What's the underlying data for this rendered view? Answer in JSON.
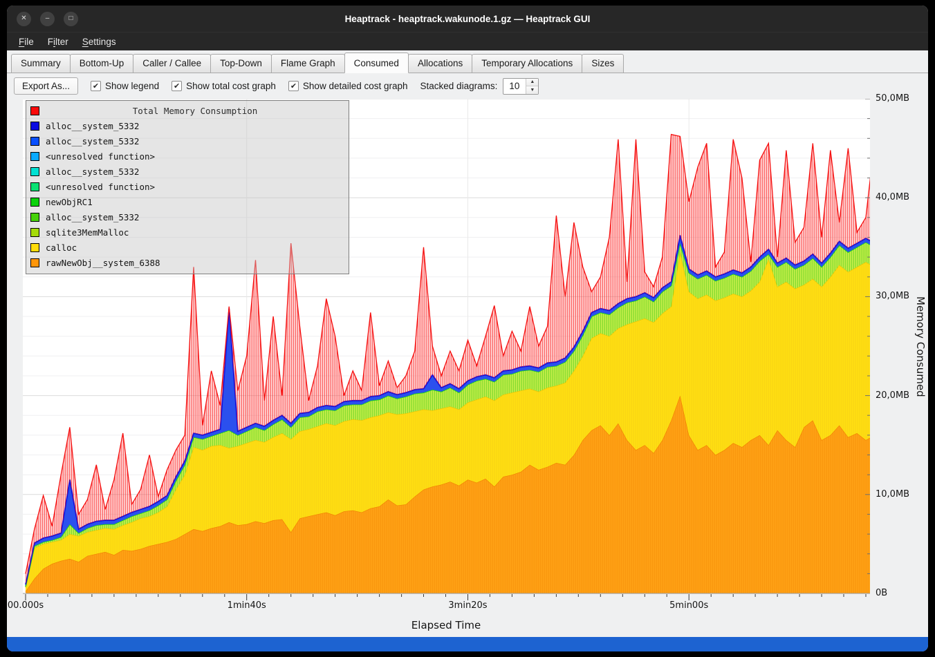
{
  "window": {
    "title": "Heaptrack - heaptrack.wakunode.1.gz — Heaptrack GUI",
    "controls": [
      {
        "name": "close",
        "glyph": "✕"
      },
      {
        "name": "minimize",
        "glyph": "–"
      },
      {
        "name": "maximize",
        "glyph": "□"
      }
    ]
  },
  "menubar": {
    "items": [
      {
        "label": "File",
        "accel": 0
      },
      {
        "label": "Filter",
        "accel": 1
      },
      {
        "label": "Settings",
        "accel": 0
      }
    ]
  },
  "tabs": [
    {
      "label": "Summary",
      "active": false
    },
    {
      "label": "Bottom-Up",
      "active": false
    },
    {
      "label": "Caller / Callee",
      "active": false
    },
    {
      "label": "Top-Down",
      "active": false
    },
    {
      "label": "Flame Graph",
      "active": false
    },
    {
      "label": "Consumed",
      "active": true
    },
    {
      "label": "Allocations",
      "active": false
    },
    {
      "label": "Temporary Allocations",
      "active": false
    },
    {
      "label": "Sizes",
      "active": false
    }
  ],
  "toolbar": {
    "export_button": "Export As...",
    "checkboxes": [
      {
        "label": "Show legend",
        "checked": true
      },
      {
        "label": "Show total cost graph",
        "checked": true
      },
      {
        "label": "Show detailed cost graph",
        "checked": true
      }
    ],
    "stacked_label": "Stacked diagrams:",
    "stacked_value": "10"
  },
  "legend": {
    "title": "Total Memory Consumption",
    "title_color": "#fa0a0a",
    "entries": [
      {
        "label": "alloc__system_5332",
        "color": "#0a0ae1"
      },
      {
        "label": "alloc__system_5332",
        "color": "#0a50ff"
      },
      {
        "label": "<unresolved function>",
        "color": "#0aaaff"
      },
      {
        "label": "alloc__system_5332",
        "color": "#00e1d2"
      },
      {
        "label": "<unresolved function>",
        "color": "#0ae173"
      },
      {
        "label": "newObjRC1",
        "color": "#0ad20a"
      },
      {
        "label": "alloc__system_5332",
        "color": "#46d20a"
      },
      {
        "label": "sqlite3MemMalloc",
        "color": "#a5dc0a"
      },
      {
        "label": "calloc",
        "color": "#ffdc0a"
      },
      {
        "label": "rawNewObj__system_6388",
        "color": "#ff960a"
      }
    ]
  },
  "axes": {
    "x_label": "Elapsed Time",
    "y_label": "Memory Consumed",
    "x_ticks": [
      {
        "label": "00.000s",
        "s": 0
      },
      {
        "label": "1min40s",
        "s": 100
      },
      {
        "label": "3min20s",
        "s": 200
      },
      {
        "label": "5min00s",
        "s": 300
      }
    ],
    "y_ticks": [
      {
        "label": "0B",
        "mb": 0
      },
      {
        "label": "10,0MB",
        "mb": 10
      },
      {
        "label": "20,0MB",
        "mb": 20
      },
      {
        "label": "30,0MB",
        "mb": 30
      },
      {
        "label": "40,0MB",
        "mb": 40
      },
      {
        "label": "50,0MB",
        "mb": 50
      }
    ]
  },
  "chart_data": {
    "type": "area",
    "title": "Total Memory Consumption",
    "xlabel": "Elapsed Time",
    "ylabel": "Memory Consumed",
    "ylim": [
      0,
      50
    ],
    "x_max_seconds": 380,
    "sample_interval_seconds": 4,
    "stacking": "absolute-tops-MB",
    "grid": {
      "major_mb": 10,
      "minor_mb": 2,
      "major_color": "#dcdcdc",
      "minor_color": "#efeff1",
      "vline_color": "#e9e9e9"
    },
    "series": [
      {
        "name": "rawNewObj__system_6388",
        "fill": "#ffa216",
        "stripe": "#ef8200",
        "stripe_opacity": 0.5,
        "stroke": "#f08000",
        "values": [
          0.2,
          1.5,
          2.5,
          3.0,
          3.3,
          3.5,
          3.2,
          3.8,
          4.0,
          4.2,
          3.9,
          4.4,
          4.3,
          4.5,
          4.8,
          5.0,
          5.2,
          5.5,
          6.0,
          6.5,
          6.3,
          6.6,
          6.8,
          7.2,
          6.9,
          7.0,
          7.3,
          7.1,
          7.4,
          7.5,
          6.2,
          7.6,
          7.8,
          8.0,
          8.2,
          7.9,
          8.3,
          8.4,
          8.2,
          8.6,
          8.8,
          9.5,
          8.9,
          9.0,
          9.8,
          10.5,
          10.8,
          11.0,
          11.3,
          10.9,
          11.5,
          11.2,
          11.6,
          10.8,
          11.8,
          12.0,
          12.3,
          13.0,
          12.5,
          12.8,
          13.2,
          13.0,
          14.0,
          15.5,
          16.5,
          17.0,
          16.0,
          17.2,
          15.5,
          14.5,
          15.0,
          14.2,
          15.5,
          17.5,
          20.0,
          16.0,
          14.5,
          15.0,
          14.0,
          14.5,
          15.2,
          14.8,
          15.5,
          16.0,
          15.0,
          16.5,
          15.5,
          14.8,
          16.8,
          17.5,
          15.5,
          16.0,
          17.0,
          15.8,
          16.2,
          15.5,
          16.0,
          15.0
        ]
      },
      {
        "name": "calloc",
        "fill": "#ffdf12",
        "stripe": "#edc414",
        "stripe_opacity": 0.45,
        "stroke": "#ecc400",
        "values": [
          0.6,
          4.6,
          5.0,
          5.2,
          5.4,
          6.0,
          5.8,
          6.2,
          6.4,
          6.6,
          6.5,
          6.9,
          7.2,
          7.6,
          7.8,
          8.2,
          8.8,
          10.5,
          12.0,
          14.8,
          14.5,
          14.9,
          15.0,
          14.7,
          14.9,
          15.2,
          15.5,
          15.3,
          15.8,
          16.2,
          15.6,
          16.4,
          16.6,
          16.9,
          17.2,
          17.0,
          17.4,
          17.6,
          17.5,
          17.8,
          18.0,
          18.3,
          18.1,
          18.2,
          18.4,
          18.6,
          18.5,
          18.7,
          18.9,
          18.6,
          19.3,
          19.6,
          19.9,
          19.5,
          20.1,
          20.3,
          20.5,
          20.7,
          20.4,
          20.8,
          21.0,
          21.3,
          22.5,
          24.0,
          25.8,
          26.3,
          26.0,
          26.8,
          27.2,
          27.5,
          27.8,
          27.4,
          28.3,
          29.0,
          34.5,
          30.5,
          29.8,
          30.2,
          29.6,
          29.9,
          30.3,
          30.0,
          30.6,
          31.5,
          33.8,
          31.0,
          31.5,
          30.8,
          31.2,
          31.8,
          31.0,
          32.0,
          33.2,
          32.5,
          33.0,
          33.5,
          33.0,
          34.0
        ]
      },
      {
        "name": "green_band (sqlite3MemMalloc / newObjRC1 / alloc__system_5332 / <unresolved function>)",
        "fill": "#c8ef4b",
        "stripe": "#46c814",
        "stripe_opacity": 0.7,
        "stroke": "#12d219",
        "accent_line": "#00d7c8",
        "values": [
          0.7,
          4.8,
          5.2,
          5.4,
          5.7,
          7.0,
          6.1,
          6.6,
          6.9,
          7.0,
          7.0,
          7.4,
          7.8,
          8.1,
          8.4,
          8.9,
          9.5,
          11.4,
          13.0,
          15.8,
          15.6,
          15.9,
          16.2,
          16.5,
          16.0,
          16.4,
          16.8,
          16.5,
          17.1,
          17.6,
          16.8,
          17.8,
          17.9,
          18.4,
          18.6,
          18.5,
          19.0,
          19.1,
          19.1,
          19.5,
          19.6,
          20.0,
          19.7,
          19.9,
          20.2,
          20.3,
          20.6,
          20.4,
          20.8,
          20.3,
          21.1,
          21.5,
          21.7,
          21.4,
          22.1,
          22.2,
          22.5,
          22.6,
          22.4,
          22.9,
          23.0,
          23.4,
          24.5,
          26.1,
          28.0,
          28.4,
          28.2,
          28.9,
          29.4,
          29.6,
          30.0,
          29.5,
          30.5,
          31.1,
          35.4,
          32.4,
          31.8,
          32.2,
          31.6,
          31.9,
          32.3,
          32.0,
          32.6,
          33.6,
          34.3,
          33.0,
          33.5,
          32.8,
          33.2,
          33.9,
          33.0,
          34.0,
          35.2,
          34.5,
          35.0,
          35.5,
          35.0,
          35.9
        ]
      },
      {
        "name": "alloc__system_5332 (blue top)",
        "fill": "#2b50ee",
        "stripe": null,
        "stripe_opacity": 0,
        "stroke": "#0a0ae1",
        "values": [
          0.9,
          5.1,
          5.6,
          5.8,
          6.1,
          11.5,
          6.5,
          7.0,
          7.3,
          7.4,
          7.4,
          7.8,
          8.2,
          8.5,
          8.8,
          9.3,
          9.9,
          11.8,
          13.4,
          16.2,
          16.0,
          16.3,
          16.6,
          28.8,
          16.4,
          16.8,
          17.2,
          16.9,
          17.5,
          18.0,
          17.2,
          18.2,
          18.3,
          18.8,
          19.0,
          18.9,
          19.4,
          19.5,
          19.5,
          19.9,
          20.0,
          20.4,
          20.1,
          20.3,
          20.6,
          20.7,
          22.1,
          20.8,
          21.2,
          20.7,
          21.5,
          21.9,
          22.1,
          21.8,
          22.5,
          22.6,
          22.9,
          23.0,
          22.8,
          23.3,
          23.4,
          23.8,
          24.9,
          26.5,
          28.4,
          28.8,
          28.6,
          29.3,
          29.8,
          30.0,
          30.4,
          29.9,
          30.9,
          31.5,
          36.2,
          32.8,
          32.2,
          32.6,
          32.0,
          32.3,
          32.7,
          32.4,
          33.0,
          34.0,
          34.8,
          33.4,
          33.9,
          33.2,
          33.6,
          34.3,
          33.4,
          34.4,
          35.6,
          34.9,
          35.4,
          35.9,
          35.4,
          36.3
        ]
      },
      {
        "name": "Total Memory Consumption",
        "fill": "#ff6464",
        "fill_opacity": 0.22,
        "stripe": "#fa1414",
        "stripe_opacity": 0.8,
        "stroke": "#f50f0f",
        "values": [
          2.0,
          6.5,
          9.9,
          6.8,
          12.0,
          16.8,
          8.0,
          9.5,
          13.0,
          8.5,
          11.5,
          16.2,
          9.0,
          10.5,
          14.0,
          9.8,
          12.5,
          14.5,
          16.0,
          33.0,
          17.0,
          22.5,
          19.0,
          29.0,
          20.5,
          24.0,
          33.7,
          19.5,
          28.0,
          20.0,
          35.4,
          27.0,
          19.5,
          23.0,
          29.8,
          26.0,
          20.0,
          22.5,
          20.5,
          28.4,
          21.0,
          23.5,
          20.8,
          22.0,
          24.5,
          35.0,
          25.0,
          22.0,
          24.5,
          22.5,
          25.6,
          23.0,
          26.0,
          29.1,
          24.0,
          26.5,
          24.5,
          29.0,
          25.0,
          27.0,
          38.2,
          30.0,
          37.5,
          33.0,
          30.5,
          32.0,
          36.0,
          45.9,
          31.5,
          45.9,
          32.5,
          31.0,
          34.0,
          46.4,
          46.2,
          39.6,
          43.1,
          45.5,
          33.0,
          34.5,
          45.9,
          42.0,
          33.5,
          43.8,
          45.5,
          34.0,
          44.8,
          35.5,
          37.0,
          45.5,
          36.0,
          44.8,
          37.5,
          45.0,
          36.5,
          38.0,
          45.9,
          37.0
        ]
      }
    ]
  }
}
